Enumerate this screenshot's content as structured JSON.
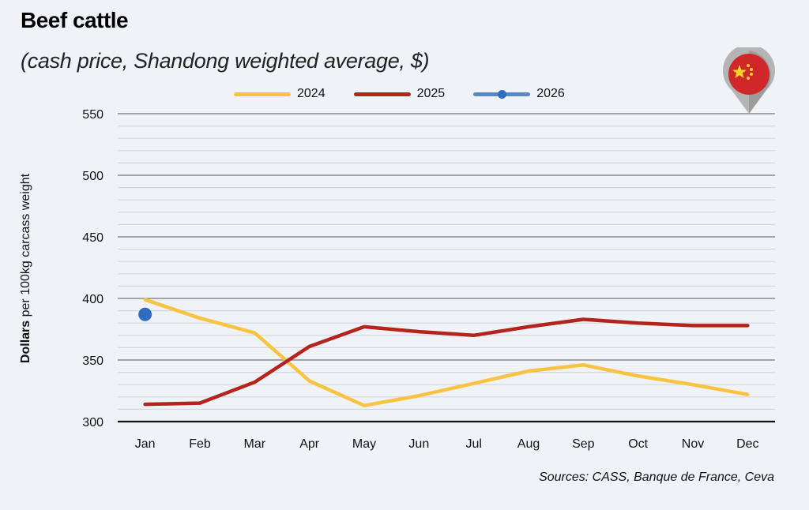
{
  "header": {
    "title": "Beef cattle",
    "subtitle": "(cash price, Shandong weighted average, $)"
  },
  "footer": {
    "source": "Sources: CASS, Banque de France, Ceva"
  },
  "badge": {
    "icon": "china-flag-pin-icon",
    "colors": {
      "flag": "#d0282a",
      "stars": "#f7d12c",
      "pin": "#a8a8a8"
    }
  },
  "chart_data": {
    "type": "line",
    "title": "Beef cattle",
    "subtitle": "(cash price, Shandong weighted average, $)",
    "xlabel": "",
    "ylabel_bold": "Dollars",
    "ylabel_rest": " per 100kg carcass weight",
    "ylabel": "Dollars per 100kg carcass weight",
    "categories": [
      "Jan",
      "Feb",
      "Mar",
      "Apr",
      "May",
      "Jun",
      "Jul",
      "Aug",
      "Sep",
      "Oct",
      "Nov",
      "Dec"
    ],
    "ylim": [
      300,
      550
    ],
    "yticks": [
      "300",
      "350",
      "400",
      "450",
      "500",
      "550"
    ],
    "minor_grid_step": 10,
    "grid": true,
    "legend_position": "top",
    "series": [
      {
        "name": "2024",
        "color": "#f8c342",
        "marker": false,
        "values": [
          399,
          384,
          372,
          333,
          313,
          321,
          331,
          341,
          346,
          337,
          330,
          322
        ]
      },
      {
        "name": "2025",
        "color": "#b5241c",
        "marker": false,
        "values": [
          314,
          315,
          332,
          361,
          377,
          373,
          370,
          377,
          383,
          380,
          378,
          378
        ]
      },
      {
        "name": "2026",
        "color": "#2e6cc0",
        "marker": true,
        "values": [
          387,
          null,
          null,
          null,
          null,
          null,
          null,
          null,
          null,
          null,
          null,
          null
        ]
      }
    ]
  }
}
